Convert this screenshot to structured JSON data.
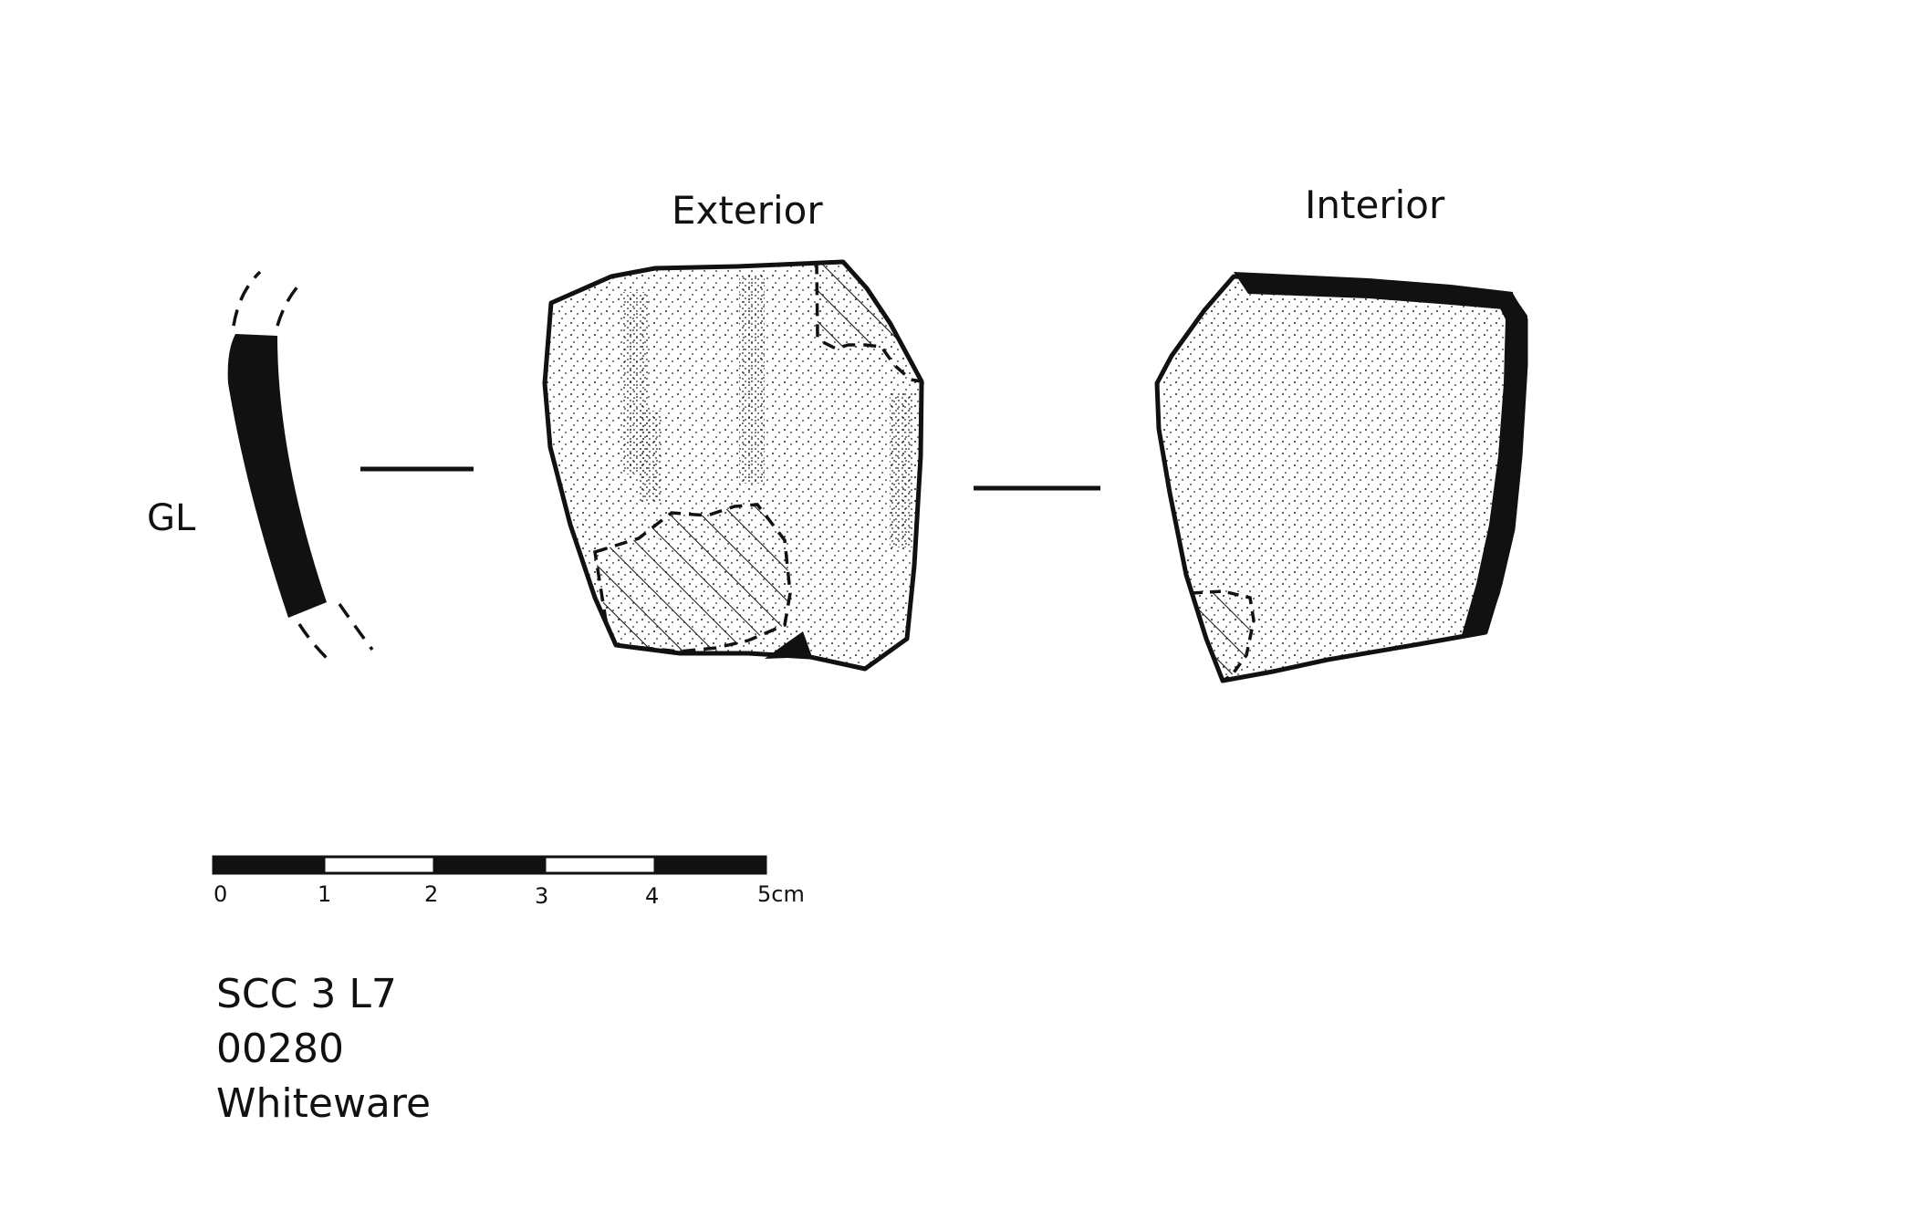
{
  "views": {
    "exterior_title": "Exterior",
    "interior_title": "Interior"
  },
  "profile": {
    "label": "GL"
  },
  "scale_bar": {
    "ticks": [
      "0",
      "1",
      "2",
      "3",
      "4",
      "5cm"
    ]
  },
  "sherd_info": {
    "context": "SCC 3 L7",
    "number": "00280",
    "ware": "Whiteware"
  },
  "colors": {
    "ink": "#111111",
    "paper": "#ffffff"
  }
}
